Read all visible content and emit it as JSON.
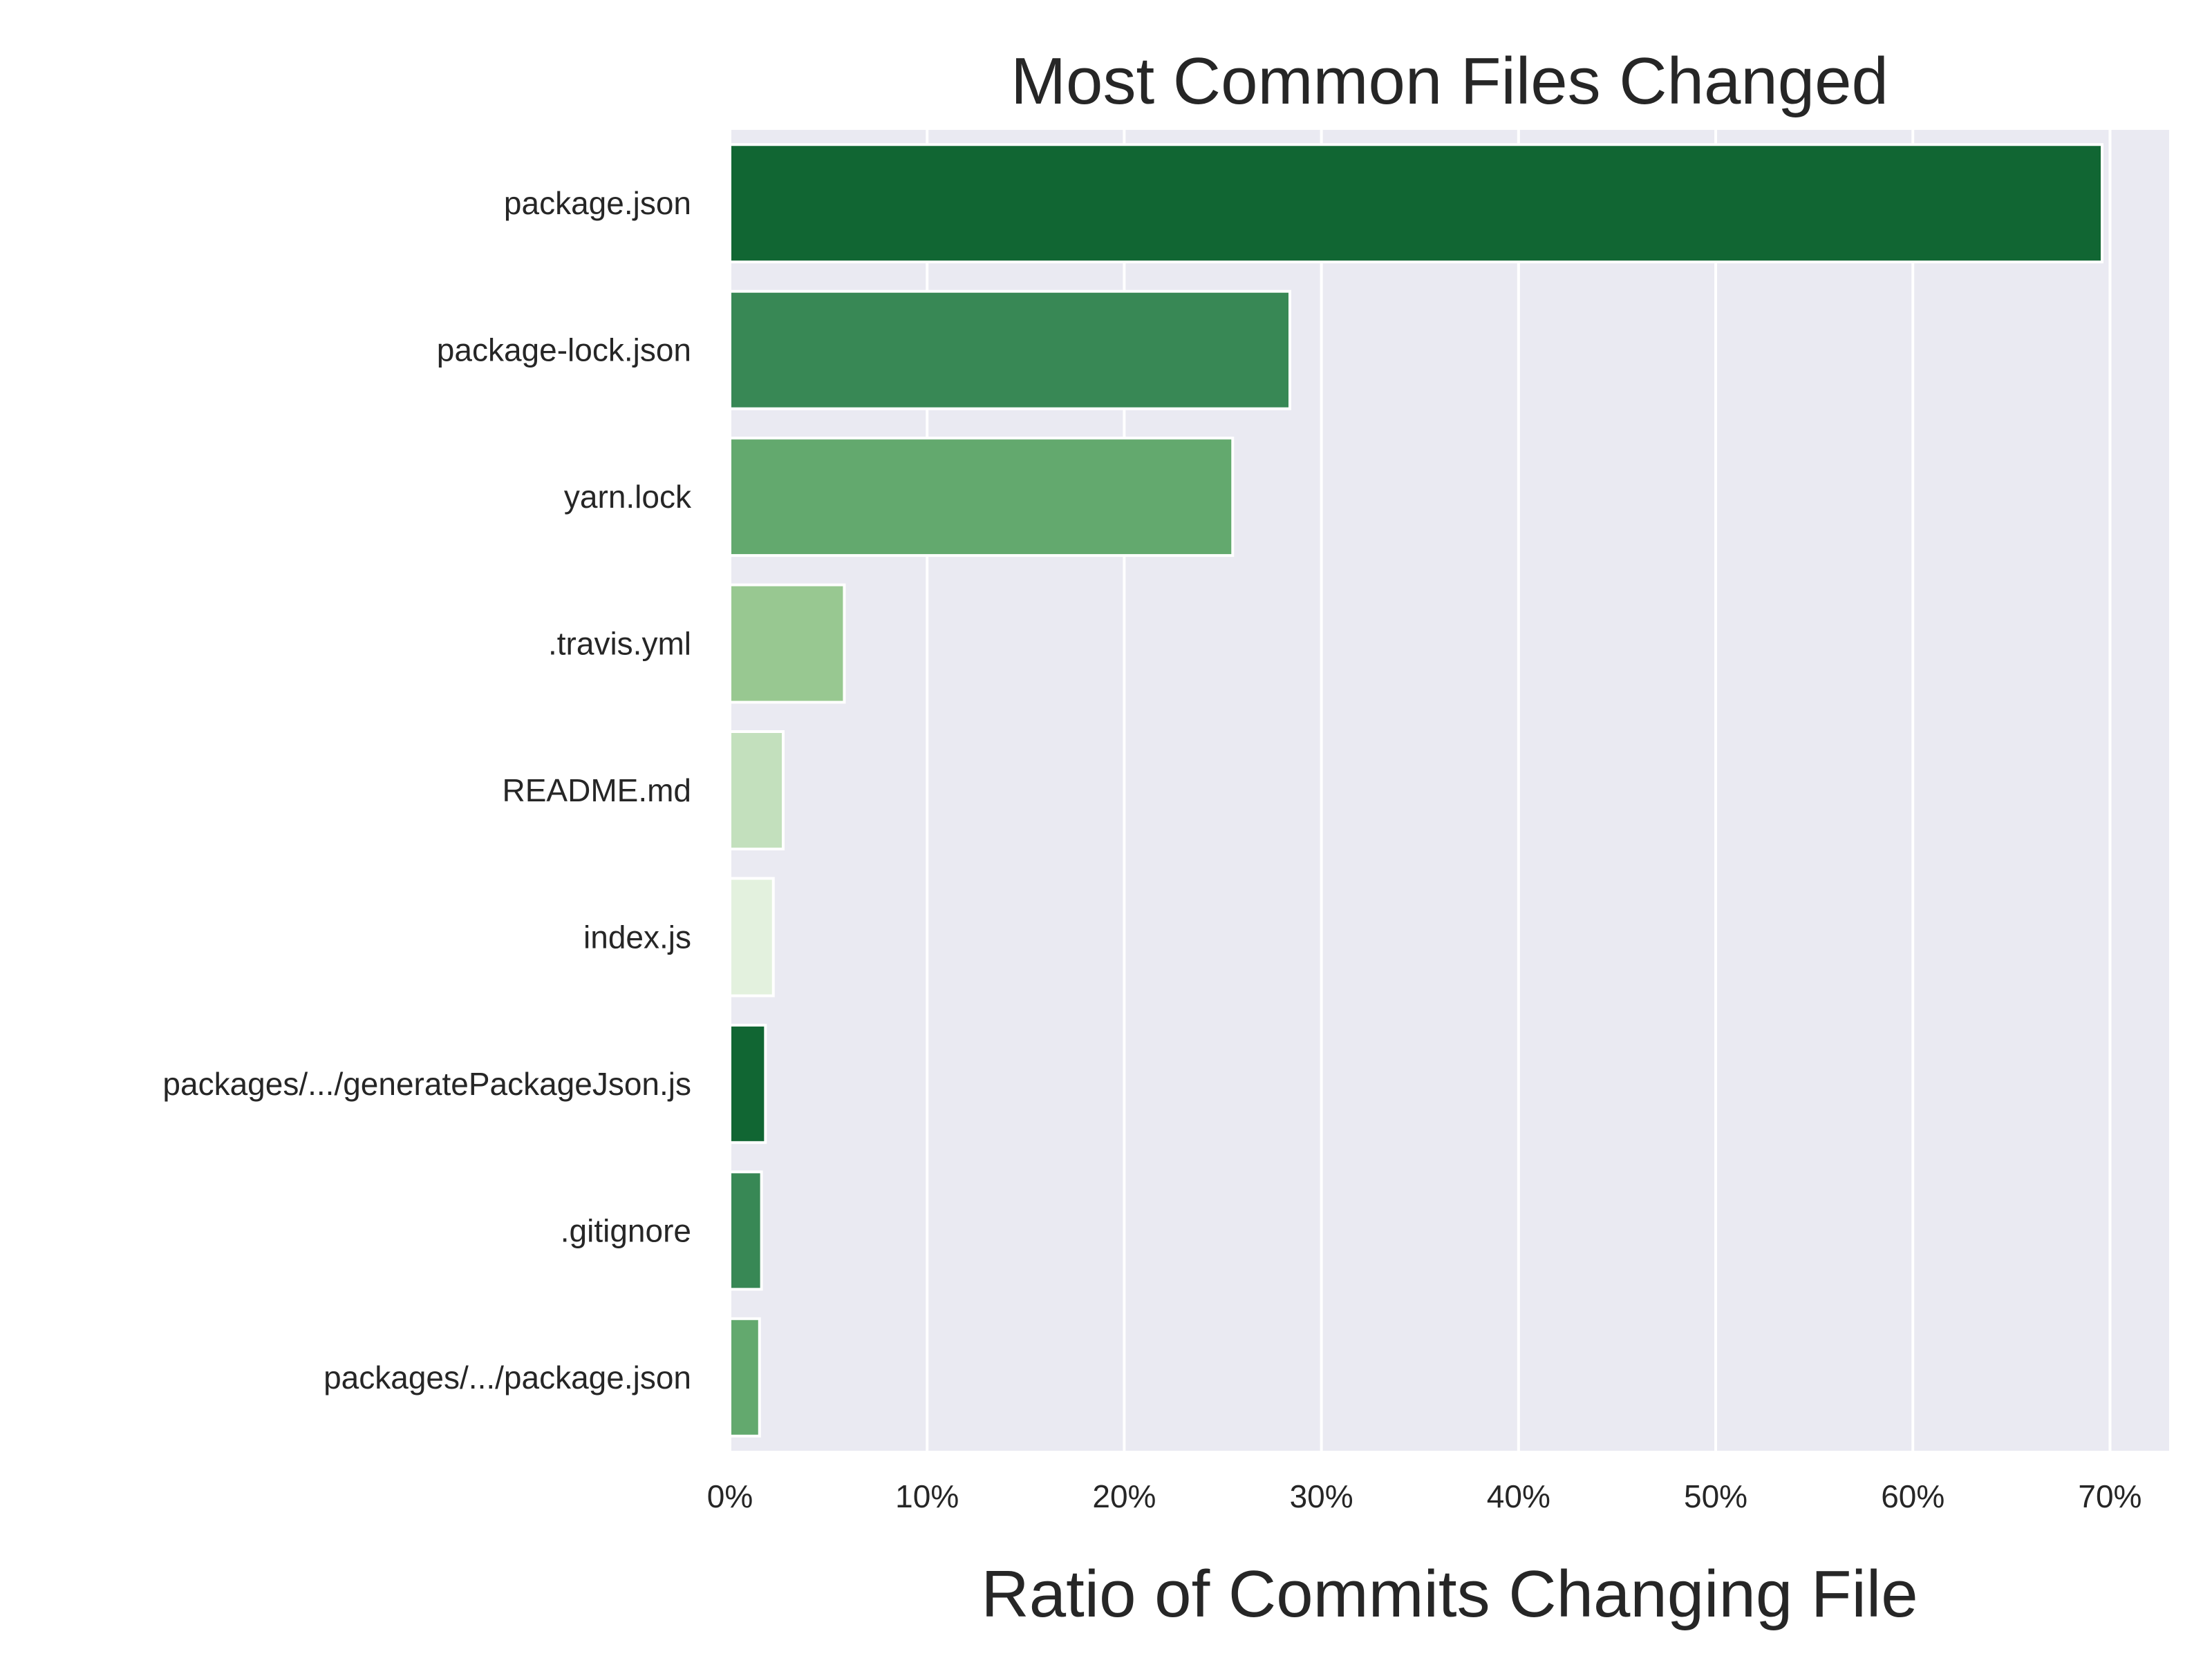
{
  "chart_data": {
    "type": "bar",
    "orientation": "horizontal",
    "title": "Most Common Files Changed",
    "xlabel": "Ratio of Commits Changing File",
    "ylabel": "",
    "xlim": [
      0,
      0.73
    ],
    "x_ticks": [
      0,
      0.1,
      0.2,
      0.3,
      0.4,
      0.5,
      0.6,
      0.7
    ],
    "x_tick_labels": [
      "0%",
      "10%",
      "20%",
      "30%",
      "40%",
      "50%",
      "60%",
      "70%"
    ],
    "grid": true,
    "categories": [
      "package.json",
      "package-lock.json",
      "yarn.lock",
      ".travis.yml",
      "README.md",
      "index.js",
      "packages/.../generatePackageJson.js",
      ".gitignore",
      "packages/.../package.json"
    ],
    "values": [
      0.696,
      0.284,
      0.255,
      0.058,
      0.027,
      0.022,
      0.018,
      0.016,
      0.015
    ],
    "bar_colors": [
      "#116633",
      "#388855",
      "#63a96e",
      "#98c891",
      "#c3e0bd",
      "#e3f1de",
      "#116633",
      "#388855",
      "#63a96e"
    ],
    "background_color": "#eaeaf2",
    "grid_color": "#ffffff",
    "text_color": "#262626"
  }
}
